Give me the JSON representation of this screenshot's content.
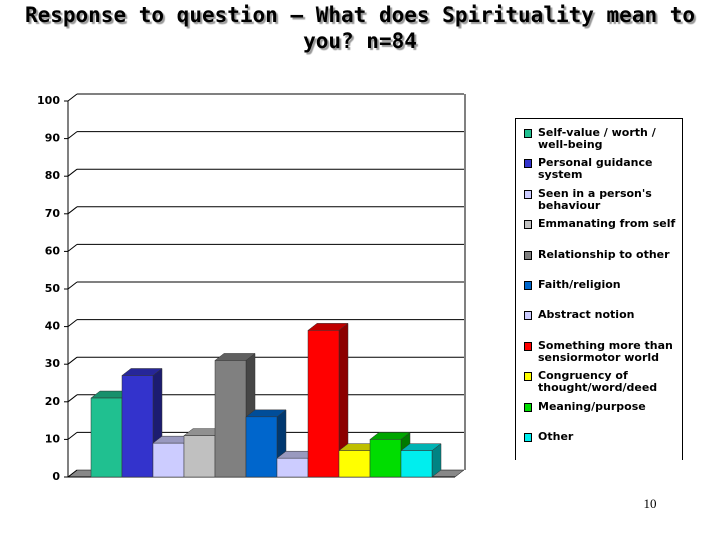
{
  "chart_data": {
    "type": "bar3d",
    "title": "Response to question – What does Spirituality mean to you? n=84",
    "categories": [
      null
    ],
    "series": [
      {
        "name": "Self-value / worth / well-being",
        "color": "#20c090",
        "values": [
          21
        ]
      },
      {
        "name": "Personal guidance system",
        "color": "#3333cc",
        "values": [
          27
        ]
      },
      {
        "name": "Seen in a person's behaviour",
        "color": "#ccccff",
        "values": [
          9
        ]
      },
      {
        "name": "Emmanating from self",
        "color": "#c0c0c0",
        "values": [
          11
        ]
      },
      {
        "name": "Relationship to other",
        "color": "#808080",
        "values": [
          31
        ]
      },
      {
        "name": "Faith/religion",
        "color": "#0066cc",
        "values": [
          16
        ]
      },
      {
        "name": "Abstract notion",
        "color": "#ccccff",
        "values": [
          5
        ]
      },
      {
        "name": "Something more than sensiormotor world",
        "color": "#ff0000",
        "values": [
          39
        ]
      },
      {
        "name": "Congruency of thought/word/deed",
        "color": "#ffff00",
        "values": [
          7
        ]
      },
      {
        "name": "Meaning/purpose",
        "color": "#00dd00",
        "values": [
          10
        ]
      },
      {
        "name": "Other",
        "color": "#00eeee",
        "values": [
          7
        ]
      }
    ],
    "ylim": [
      0,
      100
    ],
    "yticks": [
      0,
      10,
      20,
      30,
      40,
      50,
      60,
      70,
      80,
      90,
      100
    ],
    "grid": true
  },
  "page_number": "10"
}
